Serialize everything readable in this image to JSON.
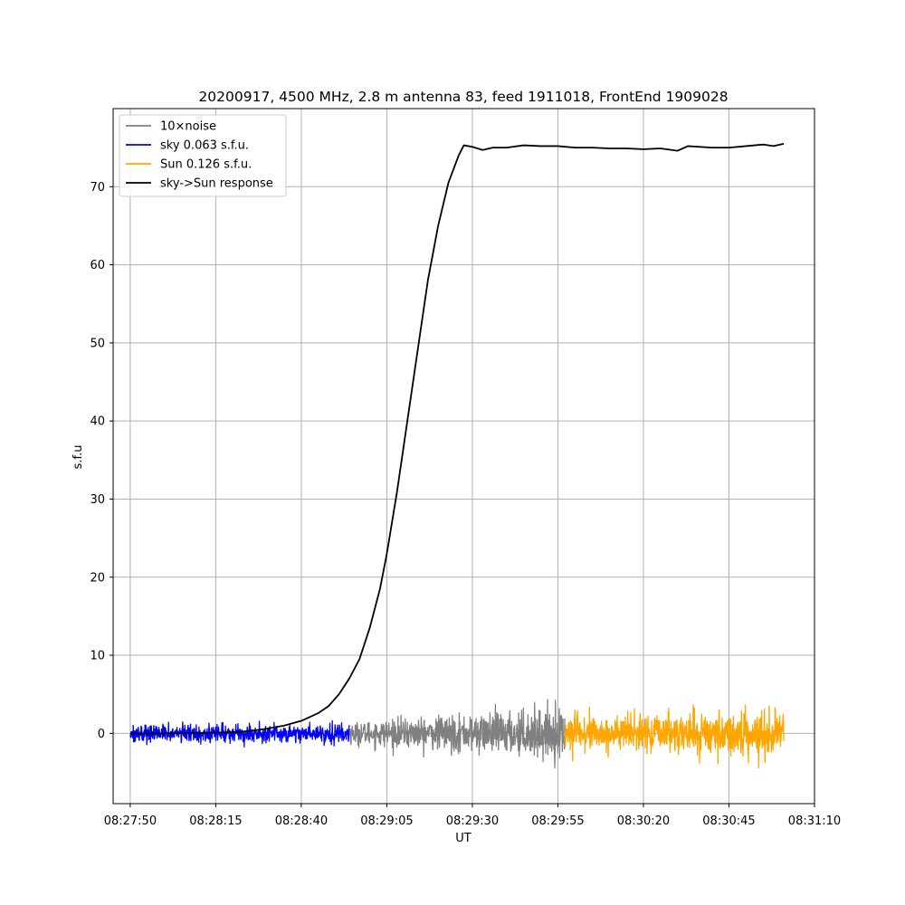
{
  "chart_data": {
    "type": "line",
    "title": "20200917, 4500 MHz, 2.8 m antenna 83, feed 1911018, FrontEnd 1909028",
    "xlabel": "UT",
    "ylabel": "s.f.u",
    "xlim_seconds_of_day": [
      30465,
      30670
    ],
    "ylim": [
      -9,
      80
    ],
    "x_ticks": [
      "08:27:50",
      "08:28:15",
      "08:28:40",
      "08:29:05",
      "08:29:30",
      "08:29:55",
      "08:30:20",
      "08:30:45",
      "08:31:10"
    ],
    "x_tick_seconds": [
      30470,
      30495,
      30520,
      30545,
      30570,
      30595,
      30620,
      30645,
      30670
    ],
    "y_ticks": [
      0,
      10,
      20,
      30,
      40,
      50,
      60,
      70
    ],
    "grid": true,
    "legend_position": "upper-left",
    "series": [
      {
        "name": "10×noise",
        "color": "#808080",
        "segment": [
          30534,
          30597
        ],
        "amplitude_start": 1.5,
        "amplitude_end": 3.5,
        "style": "noise"
      },
      {
        "name": "sky 0.063 s.f.u.",
        "color": "#0000ff",
        "segment": [
          30470,
          30534
        ],
        "amplitude_start": 1.2,
        "amplitude_end": 1.3,
        "style": "noise"
      },
      {
        "name": "Sun 0.126 s.f.u.",
        "color": "#ffa500",
        "segment": [
          30597,
          30661
        ],
        "amplitude_start": 2.5,
        "amplitude_end": 3.0,
        "style": "noise"
      },
      {
        "name": "sky->Sun response",
        "color": "#000000",
        "style": "line",
        "points": [
          [
            30470,
            0
          ],
          [
            30480,
            0
          ],
          [
            30490,
            0.05
          ],
          [
            30500,
            0.15
          ],
          [
            30505,
            0.3
          ],
          [
            30510,
            0.6
          ],
          [
            30515,
            1.0
          ],
          [
            30520,
            1.6
          ],
          [
            30525,
            2.6
          ],
          [
            30528,
            3.5
          ],
          [
            30531,
            5.0
          ],
          [
            30534,
            7.0
          ],
          [
            30537,
            9.5
          ],
          [
            30540,
            13.5
          ],
          [
            30543,
            18.5
          ],
          [
            30545,
            23.0
          ],
          [
            30548,
            31.0
          ],
          [
            30551,
            40.0
          ],
          [
            30554,
            49.0
          ],
          [
            30557,
            58.0
          ],
          [
            30560,
            65.0
          ],
          [
            30563,
            70.5
          ],
          [
            30566,
            74.0
          ],
          [
            30567.5,
            75.3
          ],
          [
            30570,
            75.1
          ],
          [
            30573,
            74.7
          ],
          [
            30576,
            75.0
          ],
          [
            30580,
            75.0
          ],
          [
            30585,
            75.3
          ],
          [
            30590,
            75.2
          ],
          [
            30595,
            75.2
          ],
          [
            30600,
            75.0
          ],
          [
            30605,
            75.0
          ],
          [
            30610,
            74.9
          ],
          [
            30615,
            74.9
          ],
          [
            30620,
            74.8
          ],
          [
            30625,
            74.9
          ],
          [
            30630,
            74.6
          ],
          [
            30633,
            75.2
          ],
          [
            30640,
            75.0
          ],
          [
            30645,
            75.0
          ],
          [
            30650,
            75.2
          ],
          [
            30655,
            75.4
          ],
          [
            30658,
            75.2
          ],
          [
            30661,
            75.5
          ]
        ]
      }
    ]
  }
}
